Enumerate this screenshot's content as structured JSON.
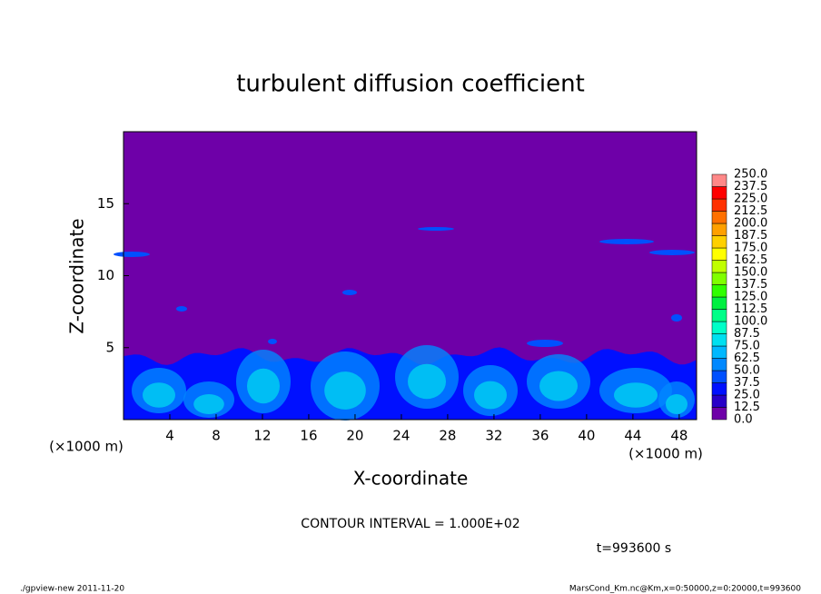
{
  "chart_data": {
    "type": "contour",
    "title": "turbulent diffusion coefficient",
    "x_label": "X-coordinate",
    "y_label": "Z-coordinate",
    "x_unit": "(×1000 m)",
    "xlim": [
      0,
      49.5
    ],
    "ylim": [
      0,
      20
    ],
    "xticks": [
      4,
      8,
      12,
      16,
      20,
      24,
      28,
      32,
      36,
      40,
      44,
      48
    ],
    "yticks": [
      5,
      10,
      15
    ],
    "contour_interval": "CONTOUR INTERVAL = 1.000E+02",
    "time_label": "t=993600 s",
    "footer_left": "./gpview-new  2011-11-20",
    "footer_right": "MarsCond_Km.nc@Km,x=0:50000,z=0:20000,t=993600",
    "colorbar": {
      "levels": [
        {
          "value": 0,
          "label": "0.0"
        },
        {
          "value": 12.5,
          "label": "12.5"
        },
        {
          "value": 25,
          "label": "25.0"
        },
        {
          "value": 37.5,
          "label": "37.5"
        },
        {
          "value": 50,
          "label": "50.0"
        },
        {
          "value": 62.5,
          "label": "62.5"
        },
        {
          "value": 75,
          "label": "75.0"
        },
        {
          "value": 87.5,
          "label": "87.5"
        },
        {
          "value": 100,
          "label": "100.0"
        },
        {
          "value": 112.5,
          "label": "112.5"
        },
        {
          "value": 125,
          "label": "125.0"
        },
        {
          "value": 137.5,
          "label": "137.5"
        },
        {
          "value": 150,
          "label": "150.0"
        },
        {
          "value": 162.5,
          "label": "162.5"
        },
        {
          "value": 175,
          "label": "175.0"
        },
        {
          "value": 187.5,
          "label": "187.5"
        },
        {
          "value": 200,
          "label": "200.0"
        },
        {
          "value": 212.5,
          "label": "212.5"
        },
        {
          "value": 225,
          "label": "225.0"
        },
        {
          "value": 237.5,
          "label": "237.5"
        },
        {
          "value": 250,
          "label": "250.0"
        }
      ],
      "colors": [
        "#6e00a8",
        "#2800c8",
        "#0010ff",
        "#0050ff",
        "#0088ff",
        "#00b8ff",
        "#00e0f0",
        "#00ffc8",
        "#00ff88",
        "#00f040",
        "#30ff00",
        "#80ff00",
        "#c0ff00",
        "#ffff00",
        "#ffd000",
        "#ffa000",
        "#ff7000",
        "#ff3000",
        "#ff0000",
        "#ff8888"
      ]
    }
  }
}
